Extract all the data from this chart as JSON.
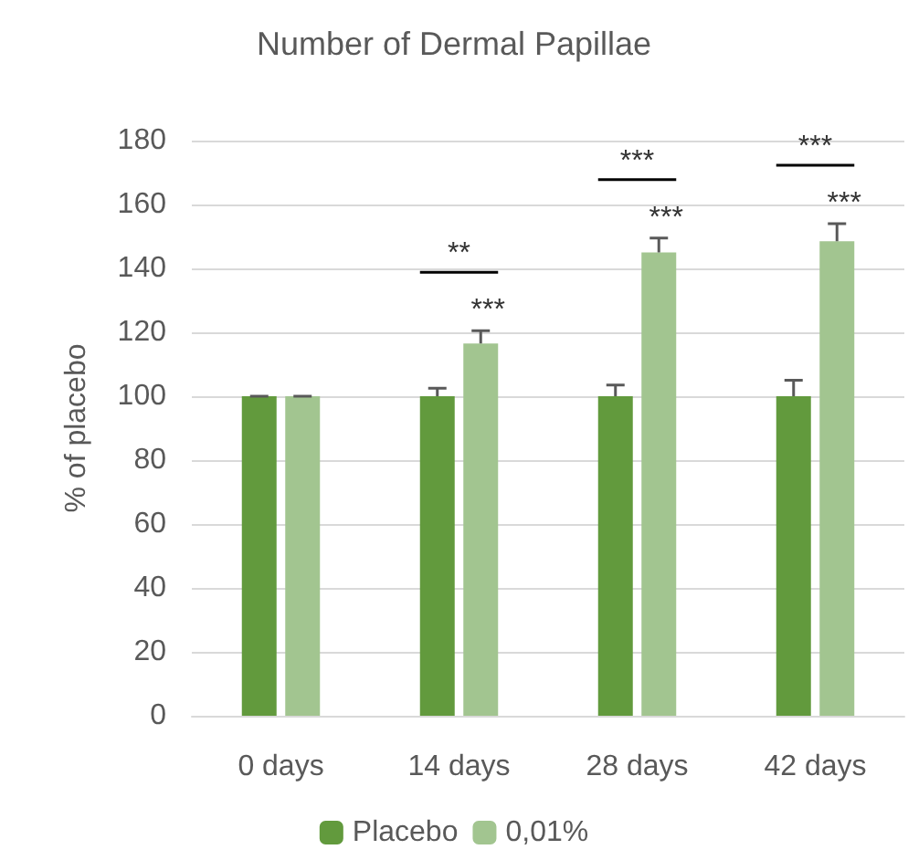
{
  "chart_data": {
    "type": "bar",
    "title": "Number of Dermal Papillae",
    "ylabel": "% of placebo",
    "categories": [
      "0 days",
      "14 days",
      "28 days",
      "42 days"
    ],
    "series": [
      {
        "name": "Placebo",
        "color": "#629a3d",
        "values": [
          100,
          100,
          100,
          100
        ],
        "errors": [
          0,
          2.5,
          3.5,
          5
        ]
      },
      {
        "name": "0,01%",
        "color": "#a2c590",
        "values": [
          100,
          116.5,
          145,
          148.5
        ],
        "errors": [
          0,
          4,
          4.5,
          5.5
        ]
      }
    ],
    "ylim": [
      0,
      180
    ],
    "yticks": [
      0,
      20,
      40,
      60,
      80,
      100,
      120,
      140,
      160,
      180
    ],
    "grid": "y",
    "legend": "bottom",
    "annotations": [
      "**",
      "***",
      "***",
      "***",
      "***",
      "***"
    ]
  }
}
